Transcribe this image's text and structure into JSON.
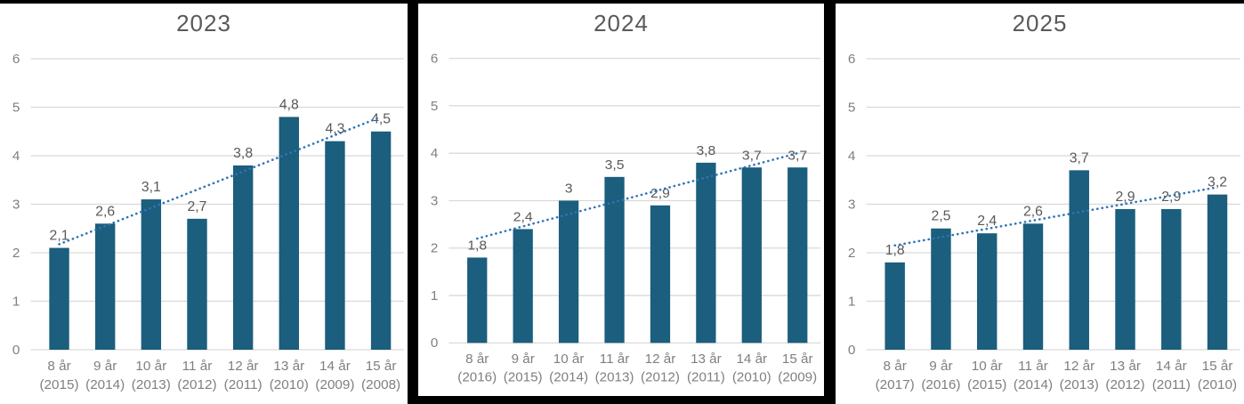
{
  "style": {
    "background": "#FFFFFF",
    "frame_color": "#000000",
    "bar_color": "#1B5E7D",
    "trendline_color": "#2E75B6",
    "gridline_color": "#D9D9D9",
    "title_color": "#595959",
    "value_label_color": "#595959",
    "axis_label_color": "#7F7F7F"
  },
  "chart_data": [
    {
      "type": "bar",
      "title": "2023",
      "ylim": [
        0,
        6
      ],
      "yticks": [
        0,
        1,
        2,
        3,
        4,
        5,
        6
      ],
      "grid": true,
      "legend": "none",
      "trendline": "linear-dotted",
      "categories": [
        {
          "age": "8 år",
          "year": "(2015)"
        },
        {
          "age": "9 år",
          "year": "(2014)"
        },
        {
          "age": "10 år",
          "year": "(2013)"
        },
        {
          "age": "11 år",
          "year": "(2012)"
        },
        {
          "age": "12 år",
          "year": "(2011)"
        },
        {
          "age": "13 år",
          "year": "(2010)"
        },
        {
          "age": "14 år",
          "year": "(2009)"
        },
        {
          "age": "15 år",
          "year": "(2008)"
        }
      ],
      "values": [
        2.1,
        2.6,
        3.1,
        2.7,
        3.8,
        4.8,
        4.3,
        4.5
      ],
      "value_labels": [
        "2,1",
        "2,6",
        "3,1",
        "2,7",
        "3,8",
        "4,8",
        "4,3",
        "4,5"
      ]
    },
    {
      "type": "bar",
      "title": "2024",
      "ylim": [
        0,
        6
      ],
      "yticks": [
        0,
        1,
        2,
        3,
        4,
        5,
        6
      ],
      "grid": true,
      "legend": "none",
      "trendline": "linear-dotted",
      "categories": [
        {
          "age": "8 år",
          "year": "(2016)"
        },
        {
          "age": "9 år",
          "year": "(2015)"
        },
        {
          "age": "10 år",
          "year": "(2014)"
        },
        {
          "age": "11 år",
          "year": "(2013)"
        },
        {
          "age": "12 år",
          "year": "(2012)"
        },
        {
          "age": "13 år",
          "year": "(2011)"
        },
        {
          "age": "14 år",
          "year": "(2010)"
        },
        {
          "age": "15 år",
          "year": "(2009)"
        }
      ],
      "values": [
        1.8,
        2.4,
        3,
        3.5,
        2.9,
        3.8,
        3.7,
        3.7
      ],
      "value_labels": [
        "1,8",
        "2,4",
        "3",
        "3,5",
        "2,9",
        "3,8",
        "3,7",
        "3,7"
      ]
    },
    {
      "type": "bar",
      "title": "2025",
      "ylim": [
        0,
        6
      ],
      "yticks": [
        0,
        1,
        2,
        3,
        4,
        5,
        6
      ],
      "grid": true,
      "legend": "none",
      "trendline": "linear-dotted",
      "categories": [
        {
          "age": "8 år",
          "year": "(2017)"
        },
        {
          "age": "9 år",
          "year": "(2016)"
        },
        {
          "age": "10 år",
          "year": "(2015)"
        },
        {
          "age": "11 år",
          "year": "(2014)"
        },
        {
          "age": "12 år",
          "year": "(2013)"
        },
        {
          "age": "13 år",
          "year": "(2012)"
        },
        {
          "age": "14 år",
          "year": "(2011)"
        },
        {
          "age": "15 år",
          "year": "(2010)"
        }
      ],
      "values": [
        1.8,
        2.5,
        2.4,
        2.6,
        3.7,
        2.9,
        2.9,
        3.2
      ],
      "value_labels": [
        "1,8",
        "2,5",
        "2,4",
        "2,6",
        "3,7",
        "2,9",
        "2,9",
        "3,2"
      ]
    }
  ]
}
